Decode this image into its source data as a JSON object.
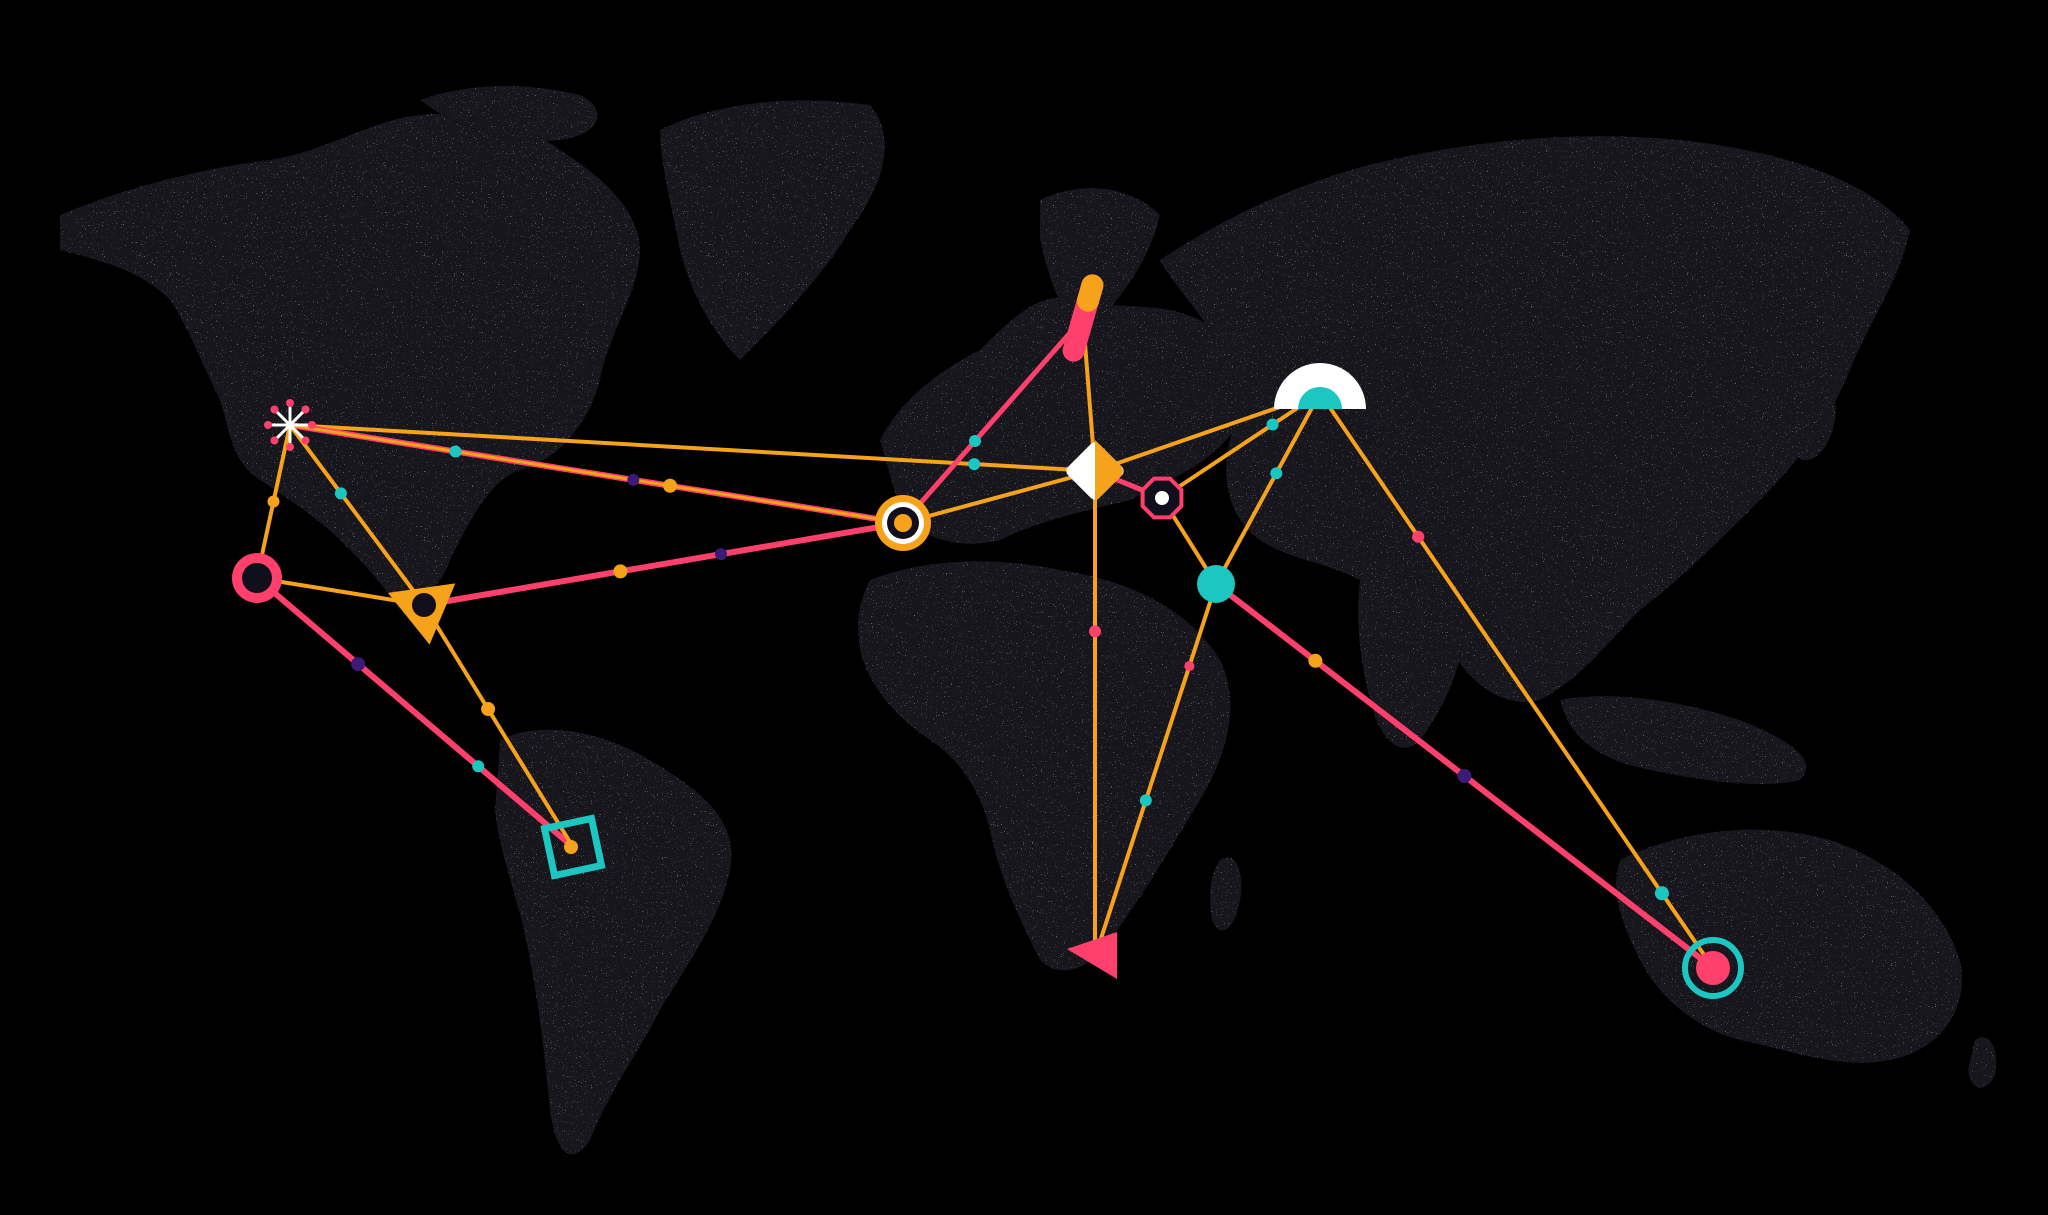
{
  "palette": {
    "background": "#000000",
    "land": "#15121f",
    "land_speckle": "#8f8aa6",
    "orange": "#f7a21b",
    "pink": "#ff3f6c",
    "teal": "#1cc7c1",
    "purple": "#3b1a78",
    "white": "#ffffff",
    "dark_dot": "#120f1c"
  },
  "map": {
    "type": "stylized world map",
    "routes_visible": 22
  },
  "nodes": [
    {
      "id": "north-america-northwest",
      "marker": "starburst-icon"
    },
    {
      "id": "north-america-west",
      "marker": "ring-icon"
    },
    {
      "id": "north-america-southeast",
      "marker": "triangle-icon"
    },
    {
      "id": "south-america",
      "marker": "square-ring-icon"
    },
    {
      "id": "western-europe",
      "marker": "target-ring-icon"
    },
    {
      "id": "northern-europe",
      "marker": "capsule-icon"
    },
    {
      "id": "central-europe",
      "marker": "diamond-icon"
    },
    {
      "id": "eastern-europe",
      "marker": "octagon-ring-icon"
    },
    {
      "id": "central-asia",
      "marker": "half-circle-icon"
    },
    {
      "id": "middle-east",
      "marker": "teal-dot-icon"
    },
    {
      "id": "southern-africa",
      "marker": "triangle-pointer-icon"
    },
    {
      "id": "australia",
      "marker": "double-ring-icon"
    }
  ]
}
